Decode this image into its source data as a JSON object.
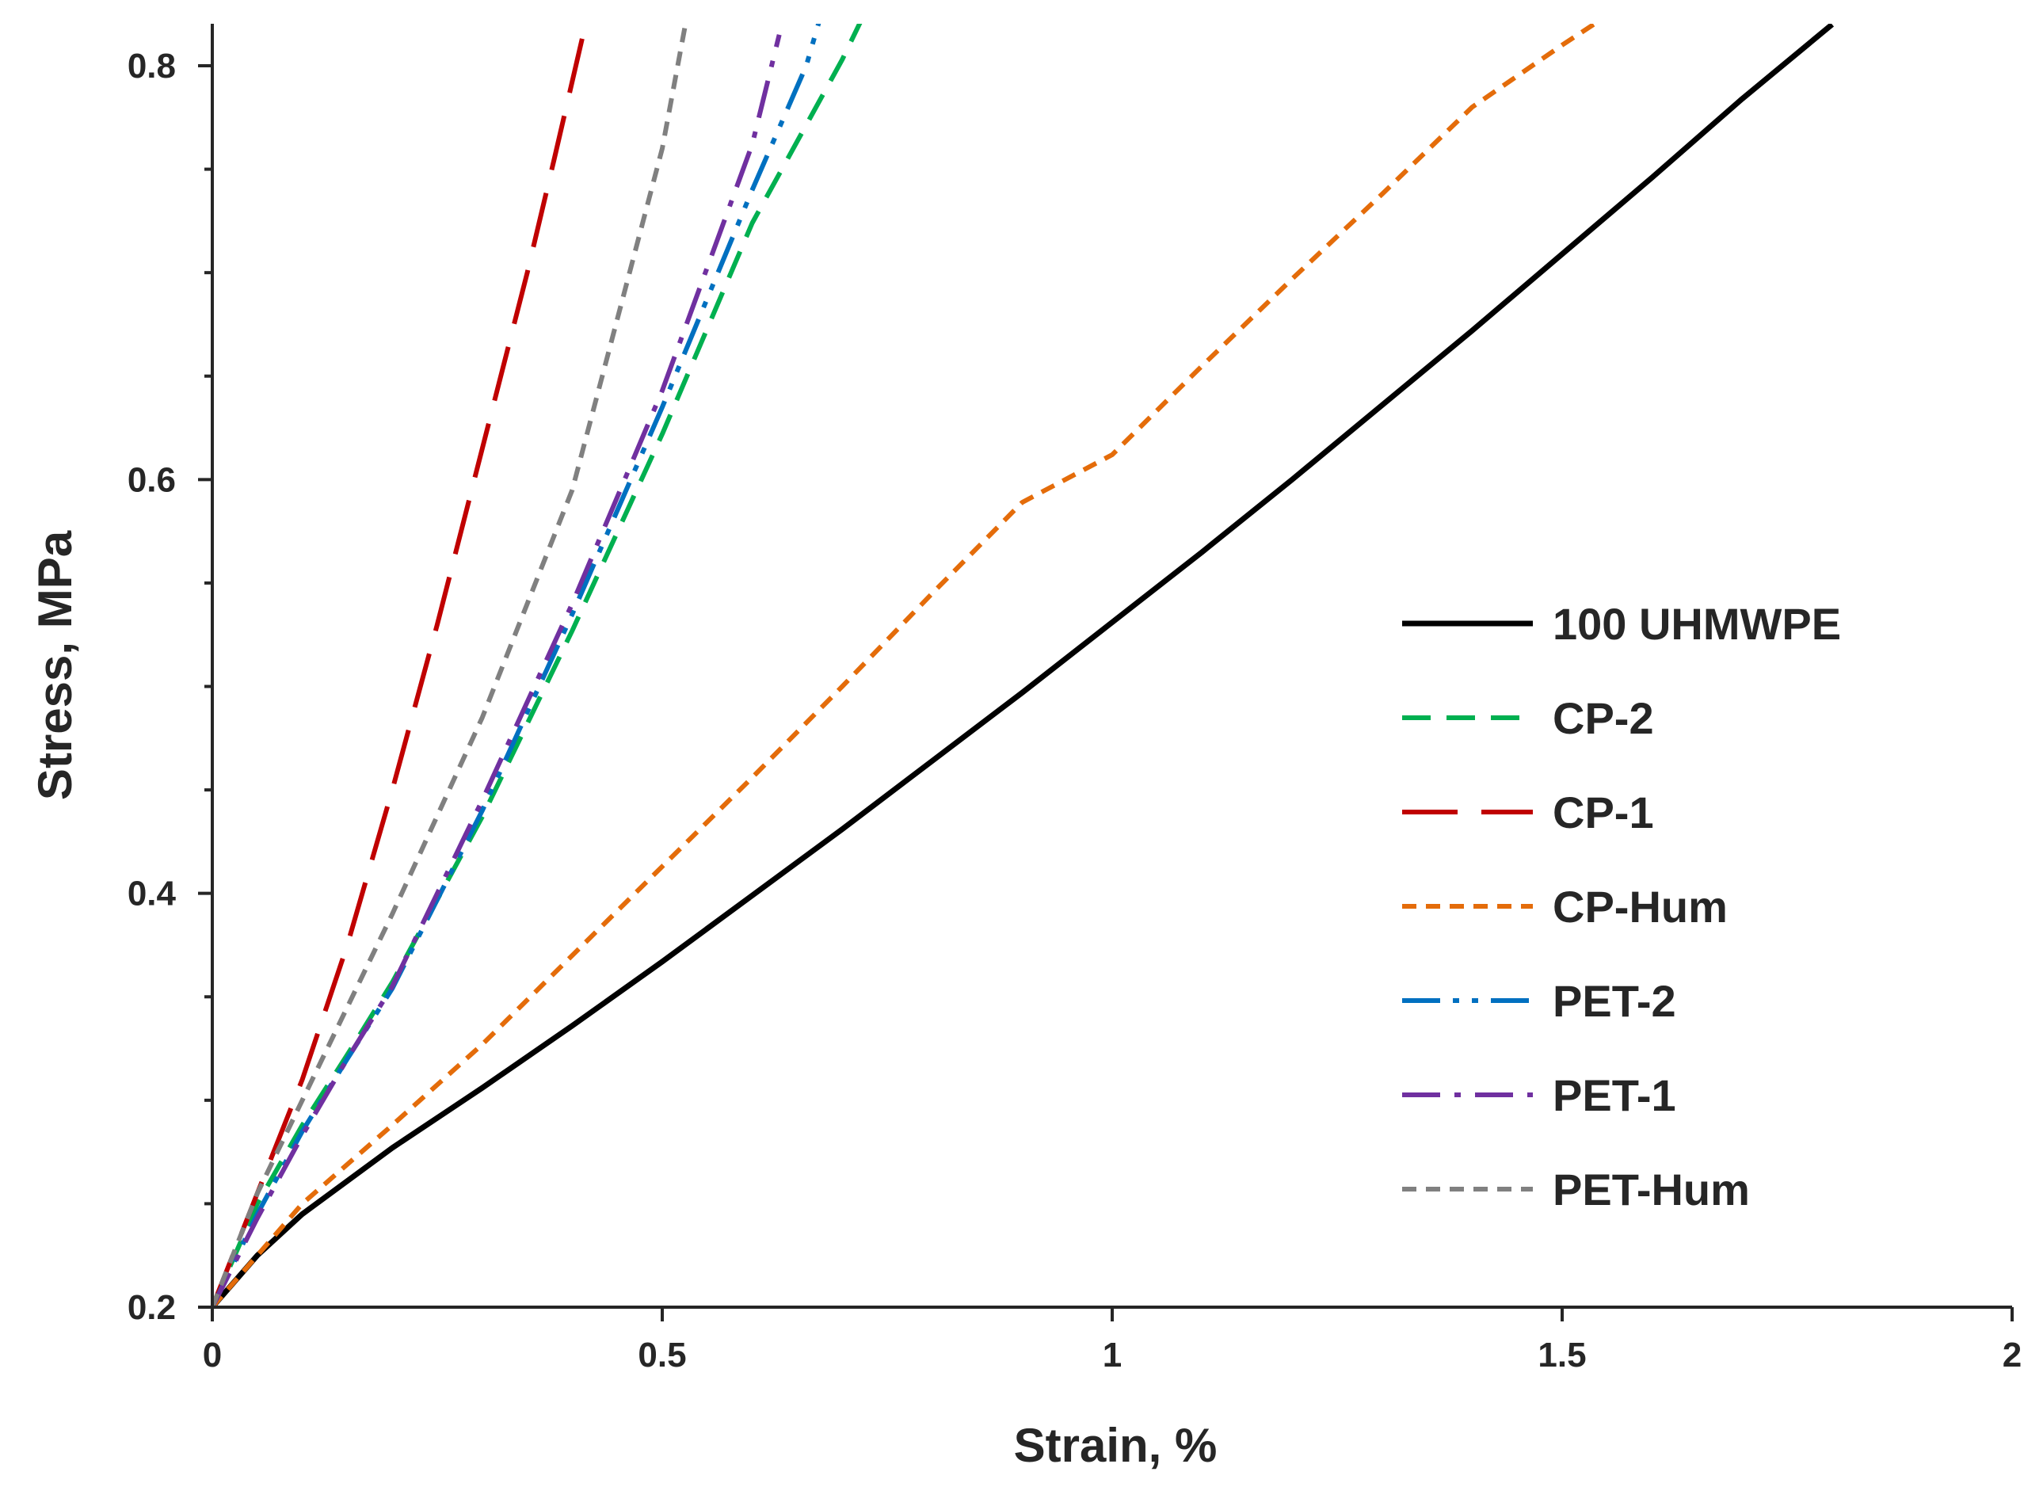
{
  "chart_data": {
    "type": "line",
    "title": "",
    "xlabel": "Strain, %",
    "ylabel": "Stress, MPa",
    "xlim": [
      0,
      2
    ],
    "ylim": [
      0.2,
      0.82
    ],
    "xticks": [
      0,
      0.5,
      1,
      1.5,
      2
    ],
    "xtick_labels": [
      "0",
      "0.5",
      "1",
      "1.5",
      "2"
    ],
    "yticks": [
      0.2,
      0.4,
      0.6,
      0.8
    ],
    "ytick_labels": [
      "0.2",
      "0.4",
      "0.6",
      "0.8"
    ],
    "grid": false,
    "legend_position": "right",
    "series": [
      {
        "name": "100 UHMWPE",
        "color": "#000000",
        "dash": "solid",
        "x": [
          0,
          0.05,
          0.1,
          0.2,
          0.3,
          0.4,
          0.5,
          0.6,
          0.7,
          0.8,
          0.9,
          1.0,
          1.1,
          1.2,
          1.3,
          1.4,
          1.5,
          1.6,
          1.7,
          1.8
        ],
        "y": [
          0.2,
          0.225,
          0.245,
          0.277,
          0.306,
          0.336,
          0.367,
          0.399,
          0.431,
          0.464,
          0.497,
          0.531,
          0.565,
          0.6,
          0.636,
          0.672,
          0.709,
          0.746,
          0.784,
          0.82
        ]
      },
      {
        "name": "CP-2",
        "color": "#00b050",
        "dash": "dash",
        "x": [
          0,
          0.05,
          0.1,
          0.15,
          0.2,
          0.3,
          0.4,
          0.5,
          0.6,
          0.7,
          0.73
        ],
        "y": [
          0.2,
          0.25,
          0.288,
          0.322,
          0.357,
          0.437,
          0.527,
          0.622,
          0.724,
          0.803,
          0.83
        ]
      },
      {
        "name": "CP-1",
        "color": "#c00000",
        "dash": "longdash",
        "x": [
          0,
          0.05,
          0.1,
          0.15,
          0.2,
          0.25,
          0.3,
          0.35,
          0.38,
          0.42
        ],
        "y": [
          0.2,
          0.255,
          0.31,
          0.375,
          0.45,
          0.53,
          0.615,
          0.7,
          0.755,
          0.83
        ]
      },
      {
        "name": "CP-Hum",
        "color": "#e46c0a",
        "dash": "shortdash",
        "x": [
          0,
          0.1,
          0.2,
          0.3,
          0.4,
          0.5,
          0.6,
          0.7,
          0.8,
          0.9,
          1.0,
          1.1,
          1.2,
          1.3,
          1.4,
          1.5,
          1.57
        ],
        "y": [
          0.2,
          0.25,
          0.288,
          0.327,
          0.37,
          0.413,
          0.456,
          0.5,
          0.545,
          0.589,
          0.612,
          0.655,
          0.697,
          0.738,
          0.78,
          0.81,
          0.83
        ]
      },
      {
        "name": "PET-2",
        "color": "#0070c0",
        "dash": "dashdotdot",
        "x": [
          0,
          0.05,
          0.1,
          0.15,
          0.2,
          0.3,
          0.4,
          0.5,
          0.6,
          0.66,
          0.68
        ],
        "y": [
          0.2,
          0.245,
          0.285,
          0.32,
          0.354,
          0.44,
          0.535,
          0.635,
          0.74,
          0.8,
          0.83
        ]
      },
      {
        "name": "PET-1",
        "color": "#7030a0",
        "dash": "dashdot",
        "x": [
          0,
          0.05,
          0.1,
          0.15,
          0.2,
          0.3,
          0.4,
          0.5,
          0.6,
          0.63
        ],
        "y": [
          0.2,
          0.243,
          0.283,
          0.32,
          0.355,
          0.445,
          0.54,
          0.643,
          0.762,
          0.815
        ]
      },
      {
        "name": "PET-Hum",
        "color": "#808080",
        "dash": "shortdash",
        "x": [
          0,
          0.05,
          0.1,
          0.15,
          0.2,
          0.3,
          0.4,
          0.5,
          0.53
        ],
        "y": [
          0.2,
          0.255,
          0.3,
          0.345,
          0.39,
          0.485,
          0.595,
          0.76,
          0.83
        ]
      }
    ]
  }
}
